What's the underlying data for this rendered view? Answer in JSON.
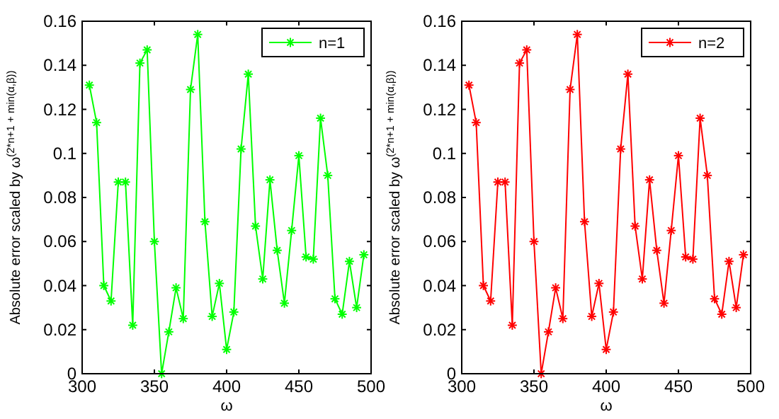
{
  "chart_data": [
    {
      "type": "line",
      "xlabel": "ω",
      "ylabel": "Absolute error scaled by ω$^{(2*n+1 + min(α,β))}$",
      "x": [
        305,
        310,
        315,
        320,
        325,
        330,
        335,
        340,
        345,
        350,
        355,
        360,
        365,
        370,
        375,
        380,
        385,
        390,
        395,
        400,
        405,
        410,
        415,
        420,
        425,
        430,
        435,
        440,
        445,
        450,
        455,
        460,
        465,
        470,
        475,
        480,
        485,
        490,
        495
      ],
      "series": [
        {
          "name": "n=1",
          "color": "#00ff00",
          "values": [
            0.131,
            0.114,
            0.04,
            0.033,
            0.087,
            0.087,
            0.022,
            0.141,
            0.147,
            0.06,
            0.0,
            0.019,
            0.039,
            0.025,
            0.129,
            0.154,
            0.069,
            0.026,
            0.041,
            0.011,
            0.028,
            0.102,
            0.136,
            0.067,
            0.043,
            0.088,
            0.056,
            0.032,
            0.065,
            0.099,
            0.053,
            0.052,
            0.116,
            0.09,
            0.034,
            0.027,
            0.051,
            0.03,
            0.054
          ]
        }
      ],
      "xlim": [
        300,
        500
      ],
      "xticks": [
        300,
        350,
        400,
        450,
        500
      ],
      "ylim": [
        0,
        0.16
      ],
      "yticks": [
        0,
        0.02,
        0.04,
        0.06,
        0.08,
        0.1,
        0.12,
        0.14,
        0.16
      ],
      "legend": "top right",
      "marker": "cross",
      "line_style": "solid",
      "grid": false
    },
    {
      "type": "line",
      "xlabel": "ω",
      "ylabel": "Absolute error scaled by ω$^{(2*n+1 + min(α,β))}$",
      "x": [
        305,
        310,
        315,
        320,
        325,
        330,
        335,
        340,
        345,
        350,
        355,
        360,
        365,
        370,
        375,
        380,
        385,
        390,
        395,
        400,
        405,
        410,
        415,
        420,
        425,
        430,
        435,
        440,
        445,
        450,
        455,
        460,
        465,
        470,
        475,
        480,
        485,
        490,
        495
      ],
      "series": [
        {
          "name": "n=2",
          "color": "#ff0000",
          "values": [
            0.131,
            0.114,
            0.04,
            0.033,
            0.087,
            0.087,
            0.022,
            0.141,
            0.147,
            0.06,
            0.0,
            0.019,
            0.039,
            0.025,
            0.129,
            0.154,
            0.069,
            0.026,
            0.041,
            0.011,
            0.028,
            0.102,
            0.136,
            0.067,
            0.043,
            0.088,
            0.056,
            0.032,
            0.065,
            0.099,
            0.053,
            0.052,
            0.116,
            0.09,
            0.034,
            0.027,
            0.051,
            0.03,
            0.054
          ]
        }
      ],
      "xlim": [
        300,
        500
      ],
      "xticks": [
        300,
        350,
        400,
        450,
        500
      ],
      "ylim": [
        0,
        0.16
      ],
      "yticks": [
        0,
        0.02,
        0.04,
        0.06,
        0.08,
        0.1,
        0.12,
        0.14,
        0.16
      ],
      "legend": "top right",
      "marker": "cross",
      "line_style": "solid",
      "grid": false
    }
  ]
}
